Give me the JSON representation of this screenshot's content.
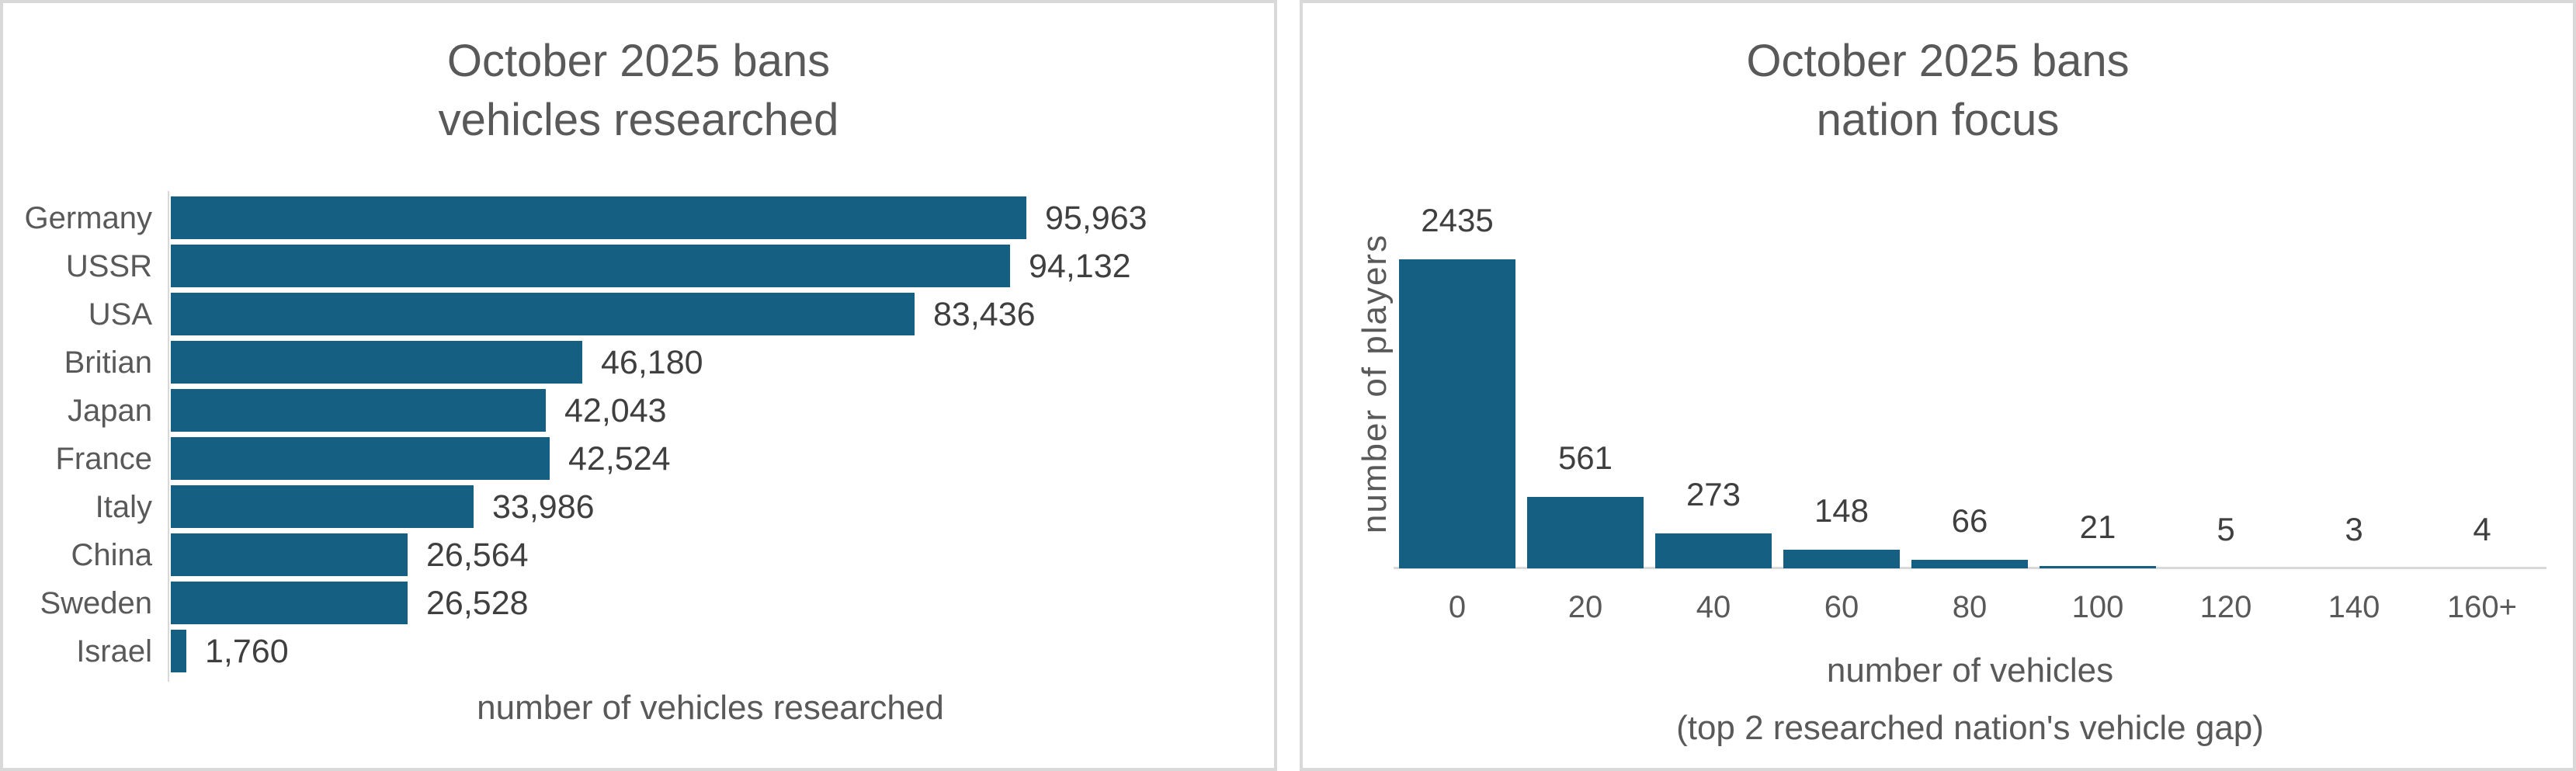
{
  "colors": {
    "bar_fill": "#156082",
    "title_text": "#595959",
    "axis_text": "#595959",
    "data_label_text": "#3f3f3f",
    "panel_border": "#d9d9d9",
    "axis_line": "#d9d9d9"
  },
  "chart_data": [
    {
      "type": "bar",
      "orientation": "horizontal",
      "title_lines": [
        "October 2025 bans",
        "vehicles researched"
      ],
      "categories": [
        "Germany",
        "USSR",
        "USA",
        "Britian",
        "Japan",
        "France",
        "Italy",
        "China",
        "Sweden",
        "Israel"
      ],
      "values": [
        95963,
        94132,
        83436,
        46180,
        42043,
        42524,
        33986,
        26564,
        26528,
        1760
      ],
      "value_labels": [
        "95,963",
        "94,132",
        "83,436",
        "46,180",
        "42,043",
        "42,524",
        "33,986",
        "26,564",
        "26,528",
        "1,760"
      ],
      "xlabel": "number of vehicles researched",
      "xlim": [
        0,
        120000
      ],
      "grid": false,
      "legend": "none"
    },
    {
      "type": "bar",
      "orientation": "vertical",
      "title_lines": [
        "October 2025 bans",
        "nation focus"
      ],
      "categories": [
        "0",
        "20",
        "40",
        "60",
        "80",
        "100",
        "120",
        "140",
        "160+"
      ],
      "values": [
        2435,
        561,
        273,
        148,
        66,
        21,
        5,
        3,
        4
      ],
      "value_labels": [
        "2435",
        "561",
        "273",
        "148",
        "66",
        "21",
        "5",
        "3",
        "4"
      ],
      "ylabel": "number of players",
      "xlabel_lines": [
        "number of vehicles",
        "(top 2 researched nation's vehicle gap)"
      ],
      "ylim": [
        0,
        2500
      ],
      "grid": false,
      "legend": "none"
    }
  ]
}
